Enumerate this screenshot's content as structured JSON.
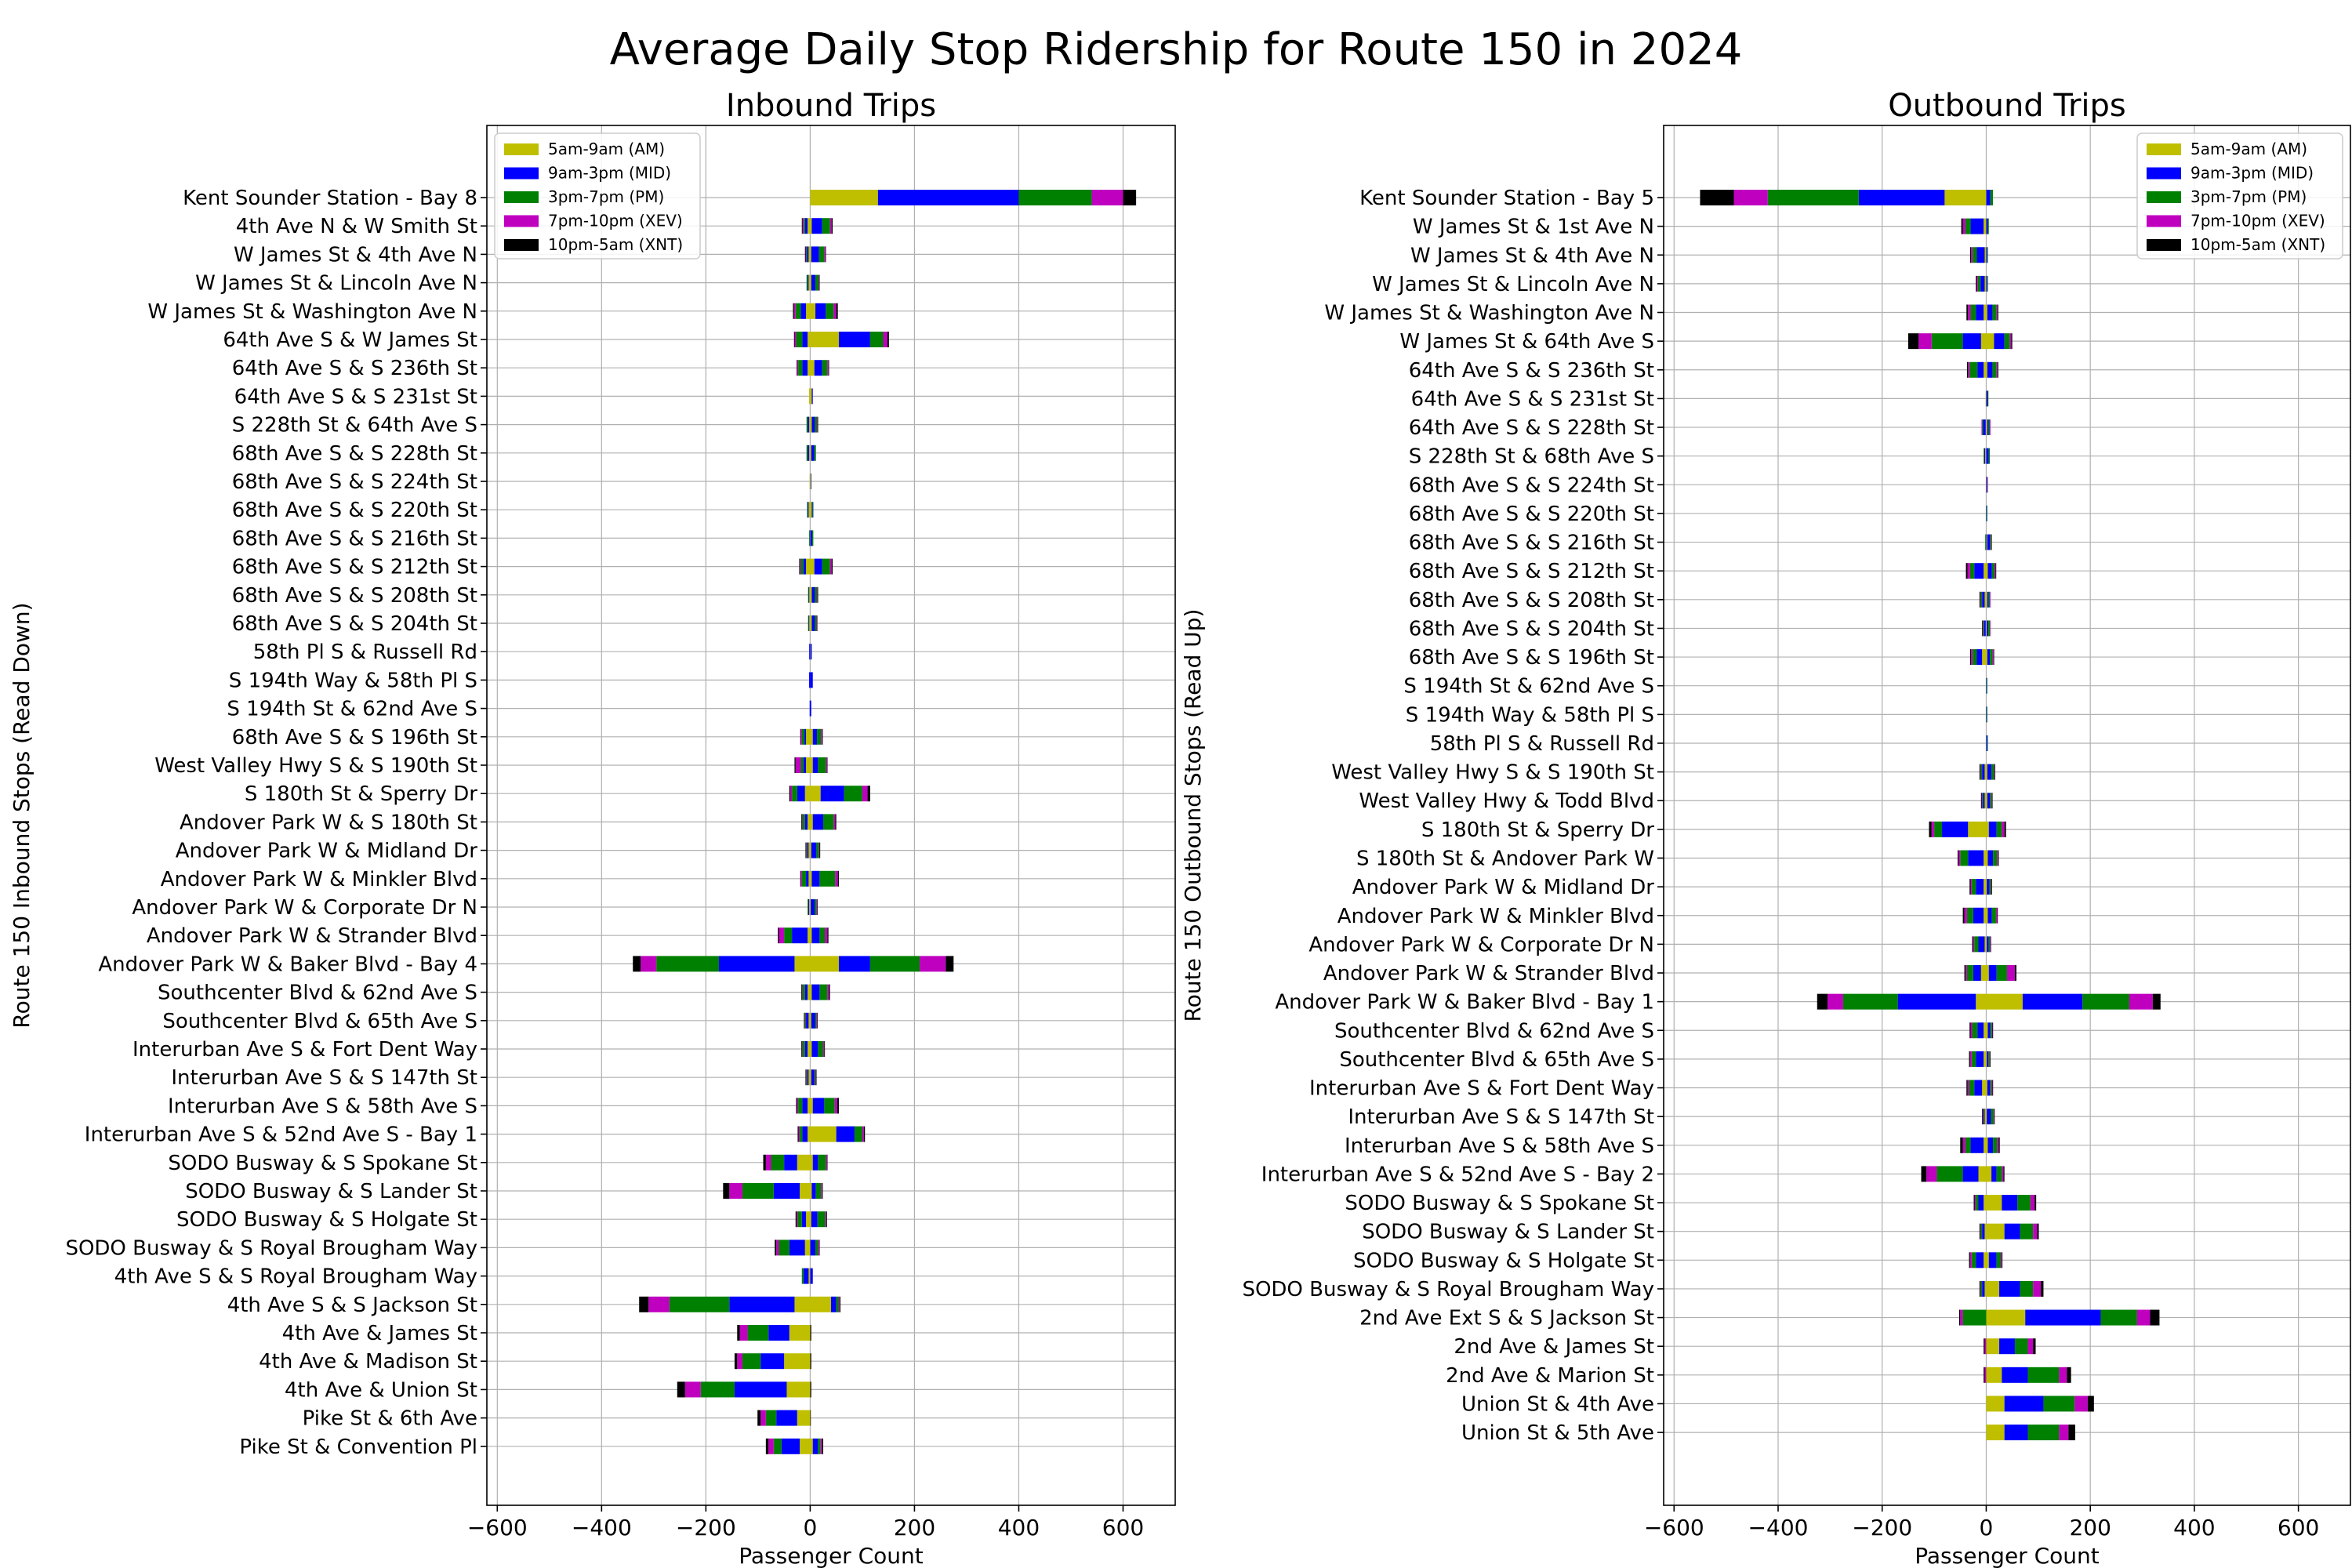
{
  "suptitle": "Average Daily Stop Ridership for Route 150 in 2024",
  "colors": {
    "AM": "#bfbf00",
    "MID": "#0000ff",
    "PM": "#008000",
    "XEV": "#bf00bf",
    "XNT": "#000000"
  },
  "chart_data": [
    {
      "type": "bar",
      "orientation": "horizontal-diverging-stacked",
      "title": "Inbound Trips",
      "xlabel": "Passenger Count",
      "ylabel": "Route 150 Inbound Stops (Read Down)",
      "xlim": [
        -620,
        700
      ],
      "xticks": [
        -600,
        -400,
        -200,
        0,
        200,
        400,
        600
      ],
      "grid": true,
      "legend": "top-left",
      "series_names": [
        "5am-9am (AM)",
        "9am-3pm (MID)",
        "3pm-7pm (PM)",
        "7pm-10pm (XEV)",
        "10pm-5am (XNT)"
      ],
      "series_keys": [
        "AM",
        "MID",
        "PM",
        "XEV",
        "XNT"
      ],
      "categories": [
        "Kent Sounder Station - Bay 8",
        "4th Ave N & W Smith St",
        "W James St & 4th Ave N",
        "W James St & Lincoln Ave N",
        "W James St & Washington Ave N",
        "64th Ave S & W James St",
        "64th Ave S & S 236th St",
        "64th Ave S & S 231st St",
        "S 228th St & 64th Ave S",
        "68th Ave S & S 228th St",
        "68th Ave S & S 224th St",
        "68th Ave S & S 220th St",
        "68th Ave S & S 216th St",
        "68th Ave S & S 212th St",
        "68th Ave S & S 208th St",
        "68th Ave S & S 204th St",
        "58th Pl S & Russell Rd",
        "S 194th Way & 58th Pl S",
        "S 194th St & 62nd Ave S",
        "68th Ave S & S 196th St",
        "West Valley Hwy S & S 190th St",
        "S 180th St & Sperry Dr",
        "Andover Park W & S 180th St",
        "Andover Park W & Midland Dr",
        "Andover Park W & Minkler Blvd",
        "Andover Park W & Corporate Dr N",
        "Andover Park W & Strander Blvd",
        "Andover Park W & Baker Blvd - Bay 4",
        "Southcenter Blvd & 62nd Ave S",
        "Southcenter Blvd & 65th Ave S",
        "Interurban Ave S & Fort Dent Way",
        "Interurban Ave S & S 147th St",
        "Interurban Ave S & 58th Ave S",
        "Interurban Ave S & 52nd Ave S - Bay 1",
        "SODO Busway & S Spokane St",
        "SODO Busway & S Lander St",
        "SODO Busway & S Holgate St",
        "SODO Busway & S Royal Brougham Way",
        "4th Ave S & S Royal Brougham Way",
        "4th Ave S & S Jackson St",
        "4th Ave & James St",
        "4th Ave & Madison St",
        "4th Ave & Union St",
        "Pike St & 6th Ave",
        "Pike St & Convention Pl"
      ],
      "boardings": {
        "AM": [
          130,
          3,
          2,
          2,
          10,
          55,
          8,
          3,
          3,
          2,
          1,
          3,
          1,
          8,
          3,
          3,
          0,
          0,
          0,
          5,
          5,
          20,
          5,
          2,
          3,
          1,
          3,
          55,
          3,
          2,
          3,
          2,
          5,
          50,
          5,
          3,
          2,
          0,
          0,
          40,
          0,
          0,
          0,
          0,
          5
        ],
        "MID": [
          270,
          20,
          15,
          8,
          20,
          60,
          15,
          2,
          6,
          6,
          1,
          2,
          3,
          15,
          6,
          6,
          3,
          5,
          2,
          8,
          10,
          45,
          20,
          10,
          15,
          8,
          15,
          60,
          15,
          8,
          12,
          6,
          22,
          35,
          10,
          8,
          12,
          10,
          5,
          10,
          0,
          0,
          0,
          0,
          10
        ],
        "PM": [
          140,
          15,
          10,
          6,
          15,
          25,
          10,
          0,
          4,
          3,
          0,
          1,
          2,
          15,
          4,
          4,
          0,
          0,
          0,
          8,
          15,
          35,
          20,
          5,
          30,
          3,
          10,
          95,
          15,
          2,
          10,
          2,
          20,
          15,
          15,
          10,
          15,
          5,
          0,
          5,
          0,
          0,
          0,
          0,
          5
        ],
        "XEV": [
          60,
          3,
          2,
          1,
          5,
          8,
          2,
          0,
          1,
          0,
          0,
          0,
          0,
          3,
          1,
          1,
          0,
          0,
          0,
          2,
          2,
          10,
          3,
          1,
          5,
          1,
          5,
          50,
          3,
          1,
          2,
          1,
          5,
          3,
          2,
          2,
          2,
          2,
          0,
          2,
          0,
          0,
          0,
          0,
          3
        ],
        "XNT": [
          25,
          2,
          1,
          1,
          3,
          3,
          1,
          0,
          1,
          0,
          0,
          0,
          0,
          2,
          1,
          0,
          0,
          0,
          0,
          1,
          1,
          5,
          2,
          1,
          2,
          1,
          2,
          15,
          2,
          1,
          1,
          1,
          3,
          2,
          1,
          1,
          1,
          1,
          0,
          1,
          2,
          2,
          2,
          1,
          2
        ]
      },
      "alightings": {
        "AM": [
          0,
          5,
          3,
          3,
          8,
          5,
          5,
          2,
          2,
          2,
          1,
          3,
          0,
          8,
          2,
          2,
          1,
          0,
          0,
          8,
          8,
          10,
          5,
          3,
          3,
          2,
          5,
          30,
          5,
          3,
          5,
          3,
          5,
          5,
          25,
          20,
          8,
          10,
          3,
          30,
          40,
          50,
          45,
          25,
          20
        ],
        "MID": [
          0,
          5,
          3,
          2,
          10,
          10,
          10,
          0,
          3,
          3,
          0,
          2,
          1,
          5,
          1,
          1,
          1,
          2,
          1,
          3,
          5,
          15,
          5,
          2,
          5,
          2,
          30,
          145,
          5,
          5,
          5,
          2,
          10,
          10,
          25,
          50,
          8,
          30,
          10,
          125,
          40,
          45,
          100,
          40,
          35
        ],
        "PM": [
          0,
          3,
          2,
          2,
          10,
          12,
          8,
          0,
          2,
          2,
          0,
          1,
          1,
          5,
          1,
          1,
          0,
          0,
          0,
          5,
          5,
          10,
          5,
          2,
          8,
          1,
          15,
          120,
          5,
          2,
          5,
          2,
          8,
          5,
          25,
          60,
          8,
          20,
          3,
          115,
          40,
          35,
          65,
          20,
          15
        ],
        "XEV": [
          0,
          2,
          1,
          0,
          3,
          3,
          2,
          0,
          0,
          0,
          0,
          0,
          0,
          2,
          0,
          0,
          0,
          0,
          0,
          2,
          10,
          3,
          1,
          1,
          2,
          0,
          10,
          30,
          1,
          1,
          1,
          1,
          2,
          2,
          10,
          25,
          2,
          5,
          0,
          40,
          15,
          10,
          30,
          10,
          10
        ],
        "XNT": [
          0,
          1,
          1,
          0,
          2,
          1,
          1,
          0,
          0,
          0,
          0,
          0,
          0,
          1,
          0,
          0,
          0,
          0,
          0,
          1,
          2,
          2,
          1,
          1,
          1,
          0,
          2,
          15,
          1,
          1,
          1,
          1,
          2,
          2,
          5,
          12,
          2,
          3,
          0,
          18,
          5,
          5,
          15,
          6,
          5
        ]
      }
    },
    {
      "type": "bar",
      "orientation": "horizontal-diverging-stacked",
      "title": "Outbound Trips",
      "xlabel": "Passenger Count",
      "ylabel": "Route 150 Outbound Stops (Read Up)",
      "xlim": [
        -620,
        700
      ],
      "xticks": [
        -600,
        -400,
        -200,
        0,
        200,
        400,
        600
      ],
      "grid": true,
      "legend": "top-right",
      "series_names": [
        "5am-9am (AM)",
        "9am-3pm (MID)",
        "3pm-7pm (PM)",
        "7pm-10pm (XEV)",
        "10pm-5am (XNT)"
      ],
      "series_keys": [
        "AM",
        "MID",
        "PM",
        "XEV",
        "XNT"
      ],
      "categories": [
        "Kent Sounder Station - Bay 5",
        "W James St & 1st Ave N",
        "W James St & 4th Ave N",
        "W James St & Lincoln Ave N",
        "W James St & Washington Ave N",
        "W James St & 64th Ave S",
        "64th Ave S & S 236th St",
        "64th Ave S & S 231st St",
        "64th Ave S & S 228th St",
        "S 228th St & 68th Ave S",
        "68th Ave S & S 224th St",
        "68th Ave S & S 220th St",
        "68th Ave S & S 216th St",
        "68th Ave S & S 212th St",
        "68th Ave S & S 208th St",
        "68th Ave S & S 204th St",
        "68th Ave S & S 196th St",
        "S 194th St & 62nd Ave S",
        "S 194th Way & 58th Pl S",
        "58th Pl S & Russell Rd",
        "West Valley Hwy S & S 190th St",
        "West Valley Hwy & Todd Blvd",
        "S 180th St & Sperry Dr",
        "S 180th St & Andover Park W",
        "Andover Park W & Midland Dr",
        "Andover Park W & Minkler Blvd",
        "Andover Park W & Corporate Dr N",
        "Andover Park W & Strander Blvd",
        "Andover Park W & Baker Blvd - Bay 1",
        "Southcenter Blvd & 62nd Ave S",
        "Southcenter Blvd & 65th Ave S",
        "Interurban Ave S & Fort Dent Way",
        "Interurban Ave S & S 147th St",
        "Interurban Ave S & 58th Ave S",
        "Interurban Ave S & 52nd Ave S - Bay 2",
        "SODO Busway & S Spokane St",
        "SODO Busway & S Lander St",
        "SODO Busway & S Holgate St",
        "SODO Busway & S Royal Brougham Way",
        "2nd Ave Ext S & S Jackson St",
        "2nd Ave & James St",
        "2nd Ave & Marion St",
        "Union St & 4th Ave",
        "Union St & 5th Ave"
      ],
      "boardings": {
        "AM": [
          0,
          0,
          0,
          0,
          2,
          15,
          2,
          0,
          2,
          0,
          0,
          0,
          2,
          3,
          2,
          1,
          2,
          0,
          0,
          0,
          2,
          2,
          5,
          3,
          1,
          3,
          1,
          5,
          70,
          3,
          1,
          2,
          1,
          3,
          10,
          30,
          35,
          5,
          25,
          75,
          25,
          30,
          35,
          35
        ],
        "MID": [
          8,
          3,
          2,
          2,
          10,
          20,
          10,
          3,
          3,
          5,
          1,
          1,
          5,
          8,
          3,
          3,
          5,
          1,
          1,
          2,
          8,
          5,
          15,
          10,
          5,
          8,
          4,
          15,
          115,
          5,
          3,
          5,
          8,
          10,
          10,
          30,
          30,
          15,
          40,
          145,
          30,
          50,
          75,
          45
        ],
        "PM": [
          5,
          2,
          1,
          1,
          8,
          10,
          8,
          1,
          2,
          2,
          1,
          1,
          3,
          5,
          2,
          3,
          5,
          1,
          1,
          1,
          5,
          3,
          10,
          8,
          3,
          8,
          2,
          20,
          90,
          3,
          2,
          3,
          5,
          8,
          10,
          25,
          25,
          8,
          25,
          70,
          25,
          60,
          60,
          60
        ],
        "XEV": [
          0,
          0,
          0,
          0,
          2,
          3,
          2,
          0,
          1,
          0,
          1,
          0,
          1,
          2,
          1,
          1,
          2,
          0,
          0,
          0,
          1,
          1,
          5,
          2,
          1,
          2,
          1,
          15,
          45,
          1,
          1,
          2,
          1,
          3,
          3,
          8,
          8,
          2,
          15,
          25,
          10,
          15,
          25,
          18
        ],
        "XNT": [
          0,
          0,
          0,
          0,
          1,
          2,
          1,
          0,
          0,
          0,
          0,
          0,
          0,
          1,
          0,
          0,
          1,
          0,
          0,
          0,
          1,
          1,
          3,
          1,
          1,
          1,
          1,
          3,
          15,
          1,
          1,
          1,
          1,
          2,
          2,
          3,
          3,
          1,
          5,
          18,
          5,
          8,
          12,
          13
        ]
      },
      "alightings": {
        "AM": [
          80,
          5,
          3,
          3,
          5,
          10,
          5,
          1,
          1,
          2,
          0,
          0,
          0,
          5,
          3,
          1,
          8,
          0,
          0,
          0,
          3,
          3,
          35,
          5,
          5,
          5,
          3,
          10,
          20,
          5,
          5,
          8,
          3,
          5,
          15,
          5,
          3,
          5,
          3,
          0,
          0,
          0,
          0,
          0
        ],
        "MID": [
          165,
          25,
          15,
          8,
          15,
          35,
          12,
          0,
          5,
          2,
          0,
          0,
          1,
          18,
          5,
          3,
          10,
          0,
          0,
          0,
          5,
          3,
          50,
          30,
          15,
          20,
          12,
          15,
          150,
          12,
          15,
          15,
          2,
          25,
          30,
          10,
          5,
          15,
          5,
          0,
          0,
          0,
          0,
          0
        ],
        "PM": [
          175,
          10,
          8,
          5,
          10,
          60,
          15,
          0,
          2,
          1,
          0,
          0,
          1,
          8,
          3,
          2,
          8,
          0,
          0,
          0,
          3,
          2,
          15,
          15,
          8,
          12,
          8,
          12,
          105,
          10,
          8,
          10,
          1,
          10,
          50,
          5,
          3,
          8,
          3,
          45,
          0,
          0,
          0,
          0
        ],
        "XEV": [
          65,
          5,
          3,
          2,
          5,
          25,
          3,
          0,
          1,
          0,
          0,
          0,
          0,
          5,
          1,
          1,
          3,
          0,
          0,
          0,
          1,
          1,
          5,
          3,
          2,
          5,
          2,
          3,
          30,
          3,
          3,
          3,
          1,
          5,
          20,
          2,
          1,
          3,
          1,
          5,
          3,
          3,
          0,
          0
        ],
        "XNT": [
          65,
          3,
          2,
          2,
          3,
          20,
          2,
          0,
          0,
          0,
          0,
          0,
          0,
          3,
          1,
          1,
          2,
          0,
          0,
          0,
          1,
          1,
          5,
          2,
          2,
          3,
          2,
          2,
          20,
          2,
          2,
          2,
          1,
          5,
          10,
          2,
          1,
          2,
          1,
          2,
          2,
          2,
          0,
          0
        ]
      }
    }
  ]
}
